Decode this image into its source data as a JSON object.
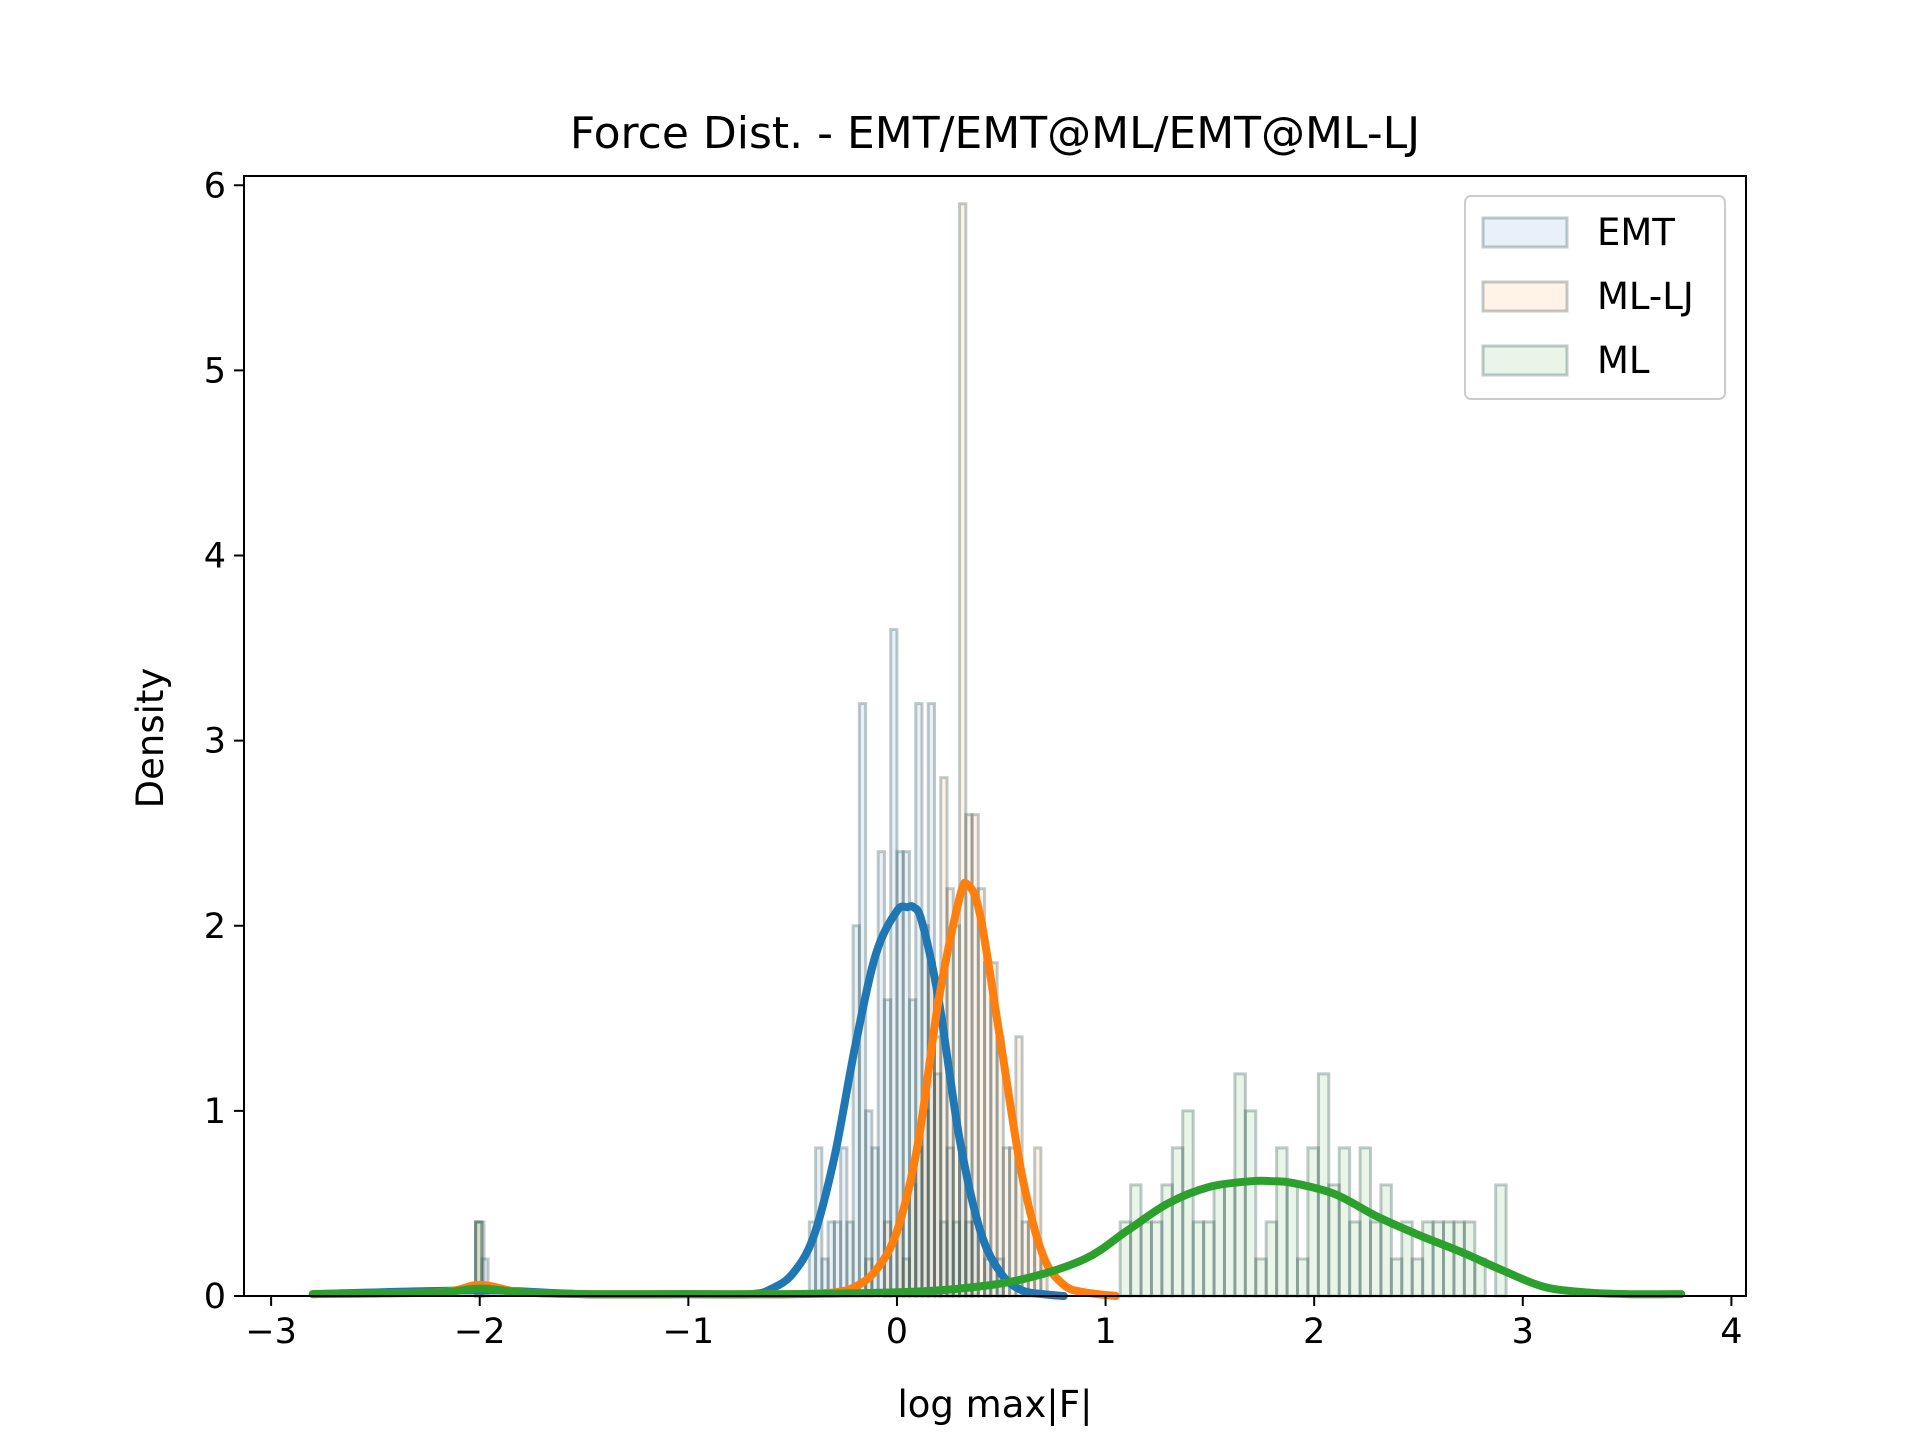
{
  "chart_data": {
    "type": "histogram+kde",
    "title": "Force Dist. - EMT/EMT@ML/EMT@ML-LJ",
    "xlabel": "log max|F|",
    "ylabel": "Density",
    "xlim": [
      -3.13,
      4.07
    ],
    "ylim": [
      0,
      6.05
    ],
    "xticks": [
      -3,
      -2,
      -1,
      0,
      1,
      2,
      3,
      4
    ],
    "xtick_labels": [
      "−3",
      "−2",
      "−1",
      "0",
      "1",
      "2",
      "3",
      "4"
    ],
    "yticks": [
      0,
      1,
      2,
      3,
      4,
      5,
      6
    ],
    "ytick_labels": [
      "0",
      "1",
      "2",
      "3",
      "4",
      "5",
      "6"
    ],
    "grid": false,
    "legend_position": "top-right",
    "legend": [
      "EMT",
      "ML-LJ",
      "ML"
    ],
    "series": [
      {
        "name": "EMT",
        "color": "#1f77b4",
        "hist_bins": [
          [
            -2.02,
            -1.99,
            0.4
          ],
          [
            -1.99,
            -1.96,
            0.2
          ],
          [
            -0.42,
            -0.39,
            0.4
          ],
          [
            -0.39,
            -0.36,
            0.8
          ],
          [
            -0.36,
            -0.33,
            0.2
          ],
          [
            -0.33,
            -0.3,
            0.4
          ],
          [
            -0.3,
            -0.27,
            0.4
          ],
          [
            -0.27,
            -0.24,
            0.8
          ],
          [
            -0.24,
            -0.21,
            0.4
          ],
          [
            -0.21,
            -0.18,
            2.0
          ],
          [
            -0.18,
            -0.15,
            3.2
          ],
          [
            -0.15,
            -0.12,
            1.0
          ],
          [
            -0.12,
            -0.09,
            0.8
          ],
          [
            -0.09,
            -0.06,
            2.4
          ],
          [
            -0.06,
            -0.03,
            1.6
          ],
          [
            -0.03,
            0.0,
            3.6
          ],
          [
            0.0,
            0.03,
            2.4
          ],
          [
            0.03,
            0.06,
            2.4
          ],
          [
            0.06,
            0.09,
            1.6
          ],
          [
            0.09,
            0.12,
            3.2
          ],
          [
            0.12,
            0.15,
            2.0
          ],
          [
            0.15,
            0.18,
            3.2
          ],
          [
            0.18,
            0.21,
            1.2
          ],
          [
            0.21,
            0.24,
            0.4
          ],
          [
            0.24,
            0.27,
            0.8
          ],
          [
            0.27,
            0.3,
            0.4
          ],
          [
            0.3,
            0.33,
            0.8
          ],
          [
            0.33,
            0.36,
            0.4
          ],
          [
            0.36,
            0.39,
            0.4
          ],
          [
            0.42,
            0.45,
            0.2
          ],
          [
            0.48,
            0.51,
            0.2
          ]
        ],
        "kde": {
          "x": [
            -2.8,
            -2.0,
            -1.5,
            -1.0,
            -0.7,
            -0.6,
            -0.5,
            -0.4,
            -0.3,
            -0.2,
            -0.1,
            0.0,
            0.05,
            0.08,
            0.12,
            0.2,
            0.3,
            0.4,
            0.5,
            0.6,
            0.7,
            0.8
          ],
          "y": [
            0.01,
            0.03,
            0.01,
            0.01,
            0.01,
            0.04,
            0.12,
            0.32,
            0.75,
            1.35,
            1.85,
            2.08,
            2.1,
            2.1,
            2.02,
            1.6,
            0.85,
            0.35,
            0.12,
            0.03,
            0.01,
            0.0
          ]
        }
      },
      {
        "name": "ML-LJ",
        "color": "#ff7f0e",
        "hist_bins": [
          [
            -2.02,
            -1.99,
            0.4
          ],
          [
            -0.15,
            -0.12,
            0.2
          ],
          [
            -0.06,
            -0.03,
            0.4
          ],
          [
            0.0,
            0.03,
            0.4
          ],
          [
            0.03,
            0.06,
            0.2
          ],
          [
            0.06,
            0.09,
            0.6
          ],
          [
            0.09,
            0.12,
            0.8
          ],
          [
            0.12,
            0.15,
            1.0
          ],
          [
            0.15,
            0.18,
            1.8
          ],
          [
            0.18,
            0.21,
            1.4
          ],
          [
            0.21,
            0.24,
            2.8
          ],
          [
            0.24,
            0.27,
            2.2
          ],
          [
            0.27,
            0.3,
            2.0
          ],
          [
            0.3,
            0.33,
            5.9
          ],
          [
            0.33,
            0.36,
            2.6
          ],
          [
            0.36,
            0.39,
            2.6
          ],
          [
            0.39,
            0.42,
            2.2
          ],
          [
            0.42,
            0.45,
            1.8
          ],
          [
            0.45,
            0.48,
            1.8
          ],
          [
            0.48,
            0.51,
            1.4
          ],
          [
            0.51,
            0.54,
            0.8
          ],
          [
            0.54,
            0.57,
            0.8
          ],
          [
            0.57,
            0.6,
            1.4
          ],
          [
            0.6,
            0.63,
            0.4
          ],
          [
            0.63,
            0.66,
            0.4
          ],
          [
            0.66,
            0.69,
            0.8
          ],
          [
            0.69,
            0.72,
            0.2
          ]
        ],
        "kde": {
          "x": [
            -2.8,
            -2.2,
            -2.0,
            -1.8,
            -1.5,
            -1.0,
            -0.5,
            -0.3,
            -0.2,
            -0.1,
            0.0,
            0.1,
            0.2,
            0.3,
            0.34,
            0.4,
            0.5,
            0.6,
            0.7,
            0.8,
            0.9,
            1.05
          ],
          "y": [
            0.01,
            0.02,
            0.06,
            0.02,
            0.01,
            0.01,
            0.01,
            0.02,
            0.05,
            0.14,
            0.35,
            0.82,
            1.6,
            2.15,
            2.22,
            2.05,
            1.35,
            0.65,
            0.22,
            0.06,
            0.02,
            0.0
          ]
        }
      },
      {
        "name": "ML",
        "color": "#2ca02c",
        "hist_bins": [
          [
            -2.02,
            -1.98,
            0.4
          ],
          [
            1.07,
            1.12,
            0.4
          ],
          [
            1.12,
            1.17,
            0.6
          ],
          [
            1.17,
            1.22,
            0.4
          ],
          [
            1.22,
            1.27,
            0.4
          ],
          [
            1.27,
            1.32,
            0.6
          ],
          [
            1.32,
            1.37,
            0.8
          ],
          [
            1.37,
            1.42,
            1.0
          ],
          [
            1.42,
            1.47,
            0.4
          ],
          [
            1.47,
            1.52,
            0.4
          ],
          [
            1.52,
            1.57,
            0.6
          ],
          [
            1.57,
            1.62,
            0.6
          ],
          [
            1.62,
            1.67,
            1.2
          ],
          [
            1.67,
            1.72,
            1.0
          ],
          [
            1.72,
            1.77,
            0.2
          ],
          [
            1.77,
            1.82,
            0.4
          ],
          [
            1.82,
            1.87,
            0.8
          ],
          [
            1.87,
            1.92,
            0.6
          ],
          [
            1.92,
            1.97,
            0.2
          ],
          [
            1.97,
            2.02,
            0.8
          ],
          [
            2.02,
            2.07,
            1.2
          ],
          [
            2.07,
            2.12,
            0.6
          ],
          [
            2.12,
            2.17,
            0.8
          ],
          [
            2.17,
            2.22,
            0.4
          ],
          [
            2.22,
            2.27,
            0.8
          ],
          [
            2.27,
            2.32,
            0.4
          ],
          [
            2.32,
            2.37,
            0.6
          ],
          [
            2.37,
            2.42,
            0.2
          ],
          [
            2.42,
            2.47,
            0.4
          ],
          [
            2.47,
            2.52,
            0.2
          ],
          [
            2.52,
            2.57,
            0.4
          ],
          [
            2.57,
            2.62,
            0.4
          ],
          [
            2.62,
            2.67,
            0.4
          ],
          [
            2.67,
            2.72,
            0.4
          ],
          [
            2.72,
            2.77,
            0.4
          ],
          [
            2.77,
            2.82,
            0.2
          ],
          [
            2.87,
            2.92,
            0.6
          ]
        ],
        "kde": {
          "x": [
            -2.8,
            -2.2,
            -2.0,
            -1.8,
            -1.5,
            -1.0,
            -0.5,
            0.0,
            0.3,
            0.6,
            0.9,
            1.1,
            1.3,
            1.5,
            1.7,
            1.8,
            1.9,
            2.1,
            2.3,
            2.5,
            2.7,
            2.9,
            3.1,
            3.3,
            3.5,
            3.76
          ],
          "y": [
            0.01,
            0.02,
            0.04,
            0.02,
            0.01,
            0.01,
            0.01,
            0.02,
            0.04,
            0.09,
            0.2,
            0.35,
            0.5,
            0.59,
            0.62,
            0.62,
            0.61,
            0.55,
            0.43,
            0.33,
            0.24,
            0.14,
            0.05,
            0.02,
            0.01,
            0.01
          ]
        }
      }
    ]
  }
}
